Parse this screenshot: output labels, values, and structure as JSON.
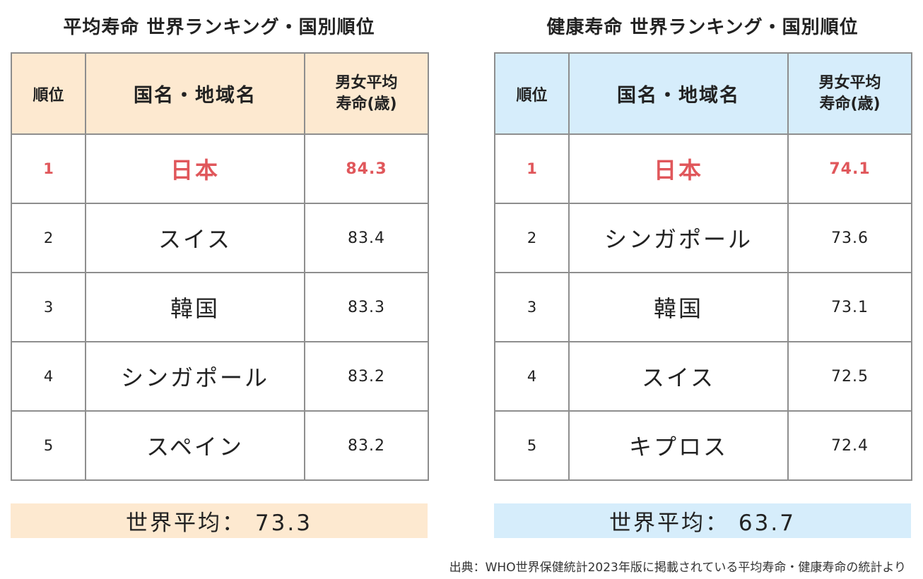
{
  "chart_data": [
    {
      "type": "table",
      "title": "平均寿命 世界ランキング・国別順位",
      "columns": [
        "順位",
        "国名・地域名",
        "男女平均",
        "寿命(歳)"
      ],
      "rows": [
        {
          "rank": "1",
          "country": "日本",
          "value": "84.3"
        },
        {
          "rank": "2",
          "country": "スイス",
          "value": "83.4"
        },
        {
          "rank": "3",
          "country": "韓国",
          "value": "83.3"
        },
        {
          "rank": "4",
          "country": "シンガポール",
          "value": "83.2"
        },
        {
          "rank": "5",
          "country": "スペイン",
          "value": "83.2"
        }
      ],
      "average": "世界平均： 73.3",
      "header_color": "#fde9d0",
      "highlight_color": "#e0575b"
    },
    {
      "type": "table",
      "title": "健康寿命 世界ランキング・国別順位",
      "columns": [
        "順位",
        "国名・地域名",
        "男女平均",
        "寿命(歳)"
      ],
      "rows": [
        {
          "rank": "1",
          "country": "日本",
          "value": "74.1"
        },
        {
          "rank": "2",
          "country": "シンガポール",
          "value": "73.6"
        },
        {
          "rank": "3",
          "country": "韓国",
          "value": "73.1"
        },
        {
          "rank": "4",
          "country": "スイス",
          "value": "72.5"
        },
        {
          "rank": "5",
          "country": "キプロス",
          "value": "72.4"
        }
      ],
      "average": "世界平均： 63.7",
      "header_color": "#d6edfb",
      "highlight_color": "#e0575b"
    }
  ],
  "source": "出典：WHO世界保健統計2023年版に掲載されている平均寿命・健康寿命の統計より"
}
